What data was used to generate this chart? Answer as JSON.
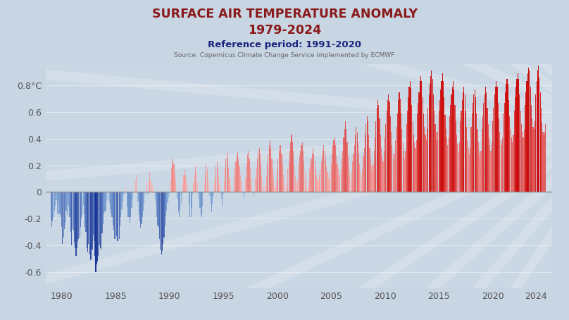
{
  "title_line1": "SURFACE AIR TEMPERATURE ANOMALY",
  "title_line2": "1979-2024",
  "subtitle": "Reference period: 1991-2020",
  "source": "Source: Copernicus Climate Change Service implemented by ECMWF",
  "title_color": "#8B1A1A",
  "subtitle_color": "#1a237e",
  "source_color": "#666666",
  "yticks": [
    0.8,
    0.6,
    0.4,
    0.2,
    0.0,
    -0.2,
    -0.4,
    -0.6
  ],
  "ytick_labels": [
    "0.8°C",
    "0.6",
    "0.4",
    "0.2",
    "0",
    "-0.2",
    "-0.4",
    "-0.6"
  ],
  "xtick_years": [
    1980,
    1985,
    1990,
    1995,
    2000,
    2005,
    2010,
    2015,
    2020,
    2024
  ],
  "ylim": [
    -0.72,
    0.96
  ],
  "xlim_left": 1978.5,
  "xlim_right": 2025.5,
  "background_color": "#ccd8e6",
  "plot_bg_color": "#cdd9e6",
  "zero_line_color": "#888888",
  "monthly_anomalies": [
    -0.21,
    -0.26,
    -0.22,
    -0.19,
    -0.14,
    -0.11,
    -0.06,
    -0.16,
    -0.07,
    -0.17,
    -0.16,
    -0.19,
    -0.26,
    -0.39,
    -0.34,
    -0.28,
    -0.23,
    -0.14,
    -0.17,
    -0.09,
    -0.11,
    -0.19,
    -0.3,
    -0.4,
    -0.28,
    -0.29,
    -0.38,
    -0.42,
    -0.48,
    -0.42,
    -0.37,
    -0.35,
    -0.34,
    -0.26,
    -0.2,
    -0.17,
    -0.1,
    -0.16,
    -0.26,
    -0.3,
    -0.42,
    -0.45,
    -0.39,
    -0.47,
    -0.51,
    -0.5,
    -0.43,
    -0.32,
    -0.37,
    -0.48,
    -0.6,
    -0.54,
    -0.52,
    -0.48,
    -0.4,
    -0.42,
    -0.43,
    -0.31,
    -0.24,
    -0.16,
    -0.15,
    -0.14,
    -0.06,
    0.01,
    -0.06,
    -0.08,
    -0.13,
    -0.16,
    -0.19,
    -0.25,
    -0.29,
    -0.35,
    -0.35,
    -0.33,
    -0.37,
    -0.37,
    -0.35,
    -0.25,
    -0.19,
    -0.13,
    -0.07,
    -0.02,
    -0.02,
    0.04,
    -0.01,
    -0.11,
    -0.19,
    -0.19,
    -0.23,
    -0.19,
    -0.12,
    -0.05,
    -0.01,
    0.01,
    0.08,
    0.13,
    0.01,
    -0.07,
    -0.17,
    -0.22,
    -0.27,
    -0.24,
    -0.19,
    -0.14,
    -0.09,
    -0.02,
    0.03,
    0.08,
    -0.02,
    0.08,
    0.15,
    0.09,
    0.07,
    0.05,
    0.03,
    -0.01,
    -0.05,
    -0.09,
    -0.19,
    -0.25,
    -0.27,
    -0.35,
    -0.43,
    -0.47,
    -0.44,
    -0.39,
    -0.34,
    -0.25,
    -0.18,
    -0.14,
    -0.08,
    -0.04,
    -0.02,
    0.08,
    0.18,
    0.23,
    0.25,
    0.21,
    0.15,
    0.08,
    0.01,
    -0.05,
    -0.15,
    -0.19,
    -0.13,
    -0.09,
    -0.02,
    0.07,
    0.13,
    0.17,
    0.13,
    0.09,
    0.05,
    -0.01,
    -0.09,
    -0.19,
    -0.19,
    -0.12,
    -0.02,
    0.07,
    0.13,
    0.19,
    0.15,
    0.07,
    0.01,
    -0.05,
    -0.12,
    -0.19,
    -0.17,
    -0.11,
    -0.01,
    0.07,
    0.15,
    0.21,
    0.17,
    0.09,
    0.03,
    -0.03,
    -0.09,
    -0.15,
    -0.09,
    -0.03,
    0.07,
    0.13,
    0.19,
    0.23,
    0.17,
    0.11,
    0.05,
    -0.01,
    -0.05,
    -0.11,
    -0.02,
    0.08,
    0.18,
    0.25,
    0.3,
    0.25,
    0.18,
    0.11,
    0.05,
    0.0,
    -0.02,
    0.01,
    0.11,
    0.17,
    0.23,
    0.28,
    0.3,
    0.25,
    0.19,
    0.13,
    0.08,
    0.03,
    -0.02,
    -0.05,
    0.01,
    0.11,
    0.21,
    0.28,
    0.31,
    0.25,
    0.18,
    0.11,
    0.05,
    0.0,
    -0.03,
    0.01,
    0.11,
    0.18,
    0.25,
    0.31,
    0.33,
    0.29,
    0.21,
    0.13,
    0.08,
    0.03,
    -0.01,
    0.05,
    0.13,
    0.21,
    0.29,
    0.35,
    0.39,
    0.33,
    0.25,
    0.17,
    0.11,
    0.05,
    0.03,
    0.08,
    0.17,
    0.25,
    0.31,
    0.35,
    0.35,
    0.29,
    0.21,
    0.13,
    0.07,
    0.03,
    0.01,
    0.07,
    0.17,
    0.23,
    0.31,
    0.37,
    0.43,
    0.38,
    0.31,
    0.21,
    0.13,
    0.08,
    0.05,
    0.09,
    0.21,
    0.27,
    0.31,
    0.35,
    0.37,
    0.31,
    0.23,
    0.15,
    0.09,
    0.04,
    0.02,
    0.08,
    0.17,
    0.21,
    0.25,
    0.29,
    0.33,
    0.29,
    0.23,
    0.17,
    0.13,
    0.09,
    0.08,
    0.13,
    0.17,
    0.23,
    0.27,
    0.31,
    0.35,
    0.31,
    0.25,
    0.19,
    0.15,
    0.11,
    0.09,
    0.15,
    0.21,
    0.29,
    0.35,
    0.39,
    0.41,
    0.35,
    0.27,
    0.21,
    0.17,
    0.13,
    0.11,
    0.17,
    0.25,
    0.31,
    0.41,
    0.47,
    0.53,
    0.47,
    0.37,
    0.27,
    0.19,
    0.13,
    0.09,
    0.15,
    0.23,
    0.29,
    0.35,
    0.43,
    0.49,
    0.45,
    0.37,
    0.29,
    0.21,
    0.15,
    0.11,
    0.17,
    0.27,
    0.33,
    0.43,
    0.51,
    0.57,
    0.53,
    0.43,
    0.33,
    0.25,
    0.19,
    0.15,
    0.21,
    0.31,
    0.41,
    0.53,
    0.63,
    0.69,
    0.65,
    0.55,
    0.43,
    0.33,
    0.27,
    0.23,
    0.31,
    0.41,
    0.51,
    0.61,
    0.69,
    0.73,
    0.68,
    0.57,
    0.45,
    0.35,
    0.29,
    0.23,
    0.29,
    0.39,
    0.49,
    0.59,
    0.69,
    0.75,
    0.7,
    0.59,
    0.47,
    0.37,
    0.31,
    0.25,
    0.31,
    0.51,
    0.61,
    0.71,
    0.79,
    0.83,
    0.78,
    0.65,
    0.53,
    0.43,
    0.37,
    0.33,
    0.39,
    0.59,
    0.67,
    0.75,
    0.83,
    0.87,
    0.83,
    0.71,
    0.59,
    0.49,
    0.43,
    0.39,
    0.47,
    0.63,
    0.73,
    0.81,
    0.87,
    0.91,
    0.85,
    0.73,
    0.61,
    0.51,
    0.45,
    0.39,
    0.45,
    0.61,
    0.69,
    0.77,
    0.83,
    0.89,
    0.83,
    0.71,
    0.58,
    0.47,
    0.41,
    0.35,
    0.41,
    0.57,
    0.65,
    0.73,
    0.79,
    0.83,
    0.77,
    0.65,
    0.53,
    0.43,
    0.36,
    0.31,
    0.37,
    0.53,
    0.61,
    0.69,
    0.75,
    0.79,
    0.73,
    0.61,
    0.49,
    0.39,
    0.33,
    0.28,
    0.33,
    0.49,
    0.59,
    0.67,
    0.73,
    0.77,
    0.71,
    0.59,
    0.47,
    0.37,
    0.31,
    0.27,
    0.31,
    0.47,
    0.57,
    0.67,
    0.73,
    0.79,
    0.75,
    0.63,
    0.51,
    0.41,
    0.35,
    0.31,
    0.37,
    0.53,
    0.63,
    0.73,
    0.79,
    0.83,
    0.79,
    0.67,
    0.55,
    0.45,
    0.39,
    0.35,
    0.41,
    0.59,
    0.67,
    0.75,
    0.81,
    0.85,
    0.81,
    0.69,
    0.57,
    0.47,
    0.41,
    0.37,
    0.43,
    0.61,
    0.71,
    0.79,
    0.85,
    0.89,
    0.85,
    0.73,
    0.61,
    0.51,
    0.45,
    0.41,
    0.47,
    0.65,
    0.75,
    0.83,
    0.89,
    0.93,
    0.91,
    0.79,
    0.65,
    0.55,
    0.49,
    0.47,
    0.53,
    0.73,
    0.83,
    0.91,
    0.95,
    0.86,
    0.75,
    0.63,
    0.52,
    0.45,
    0.43,
    0.45,
    0.51
  ]
}
